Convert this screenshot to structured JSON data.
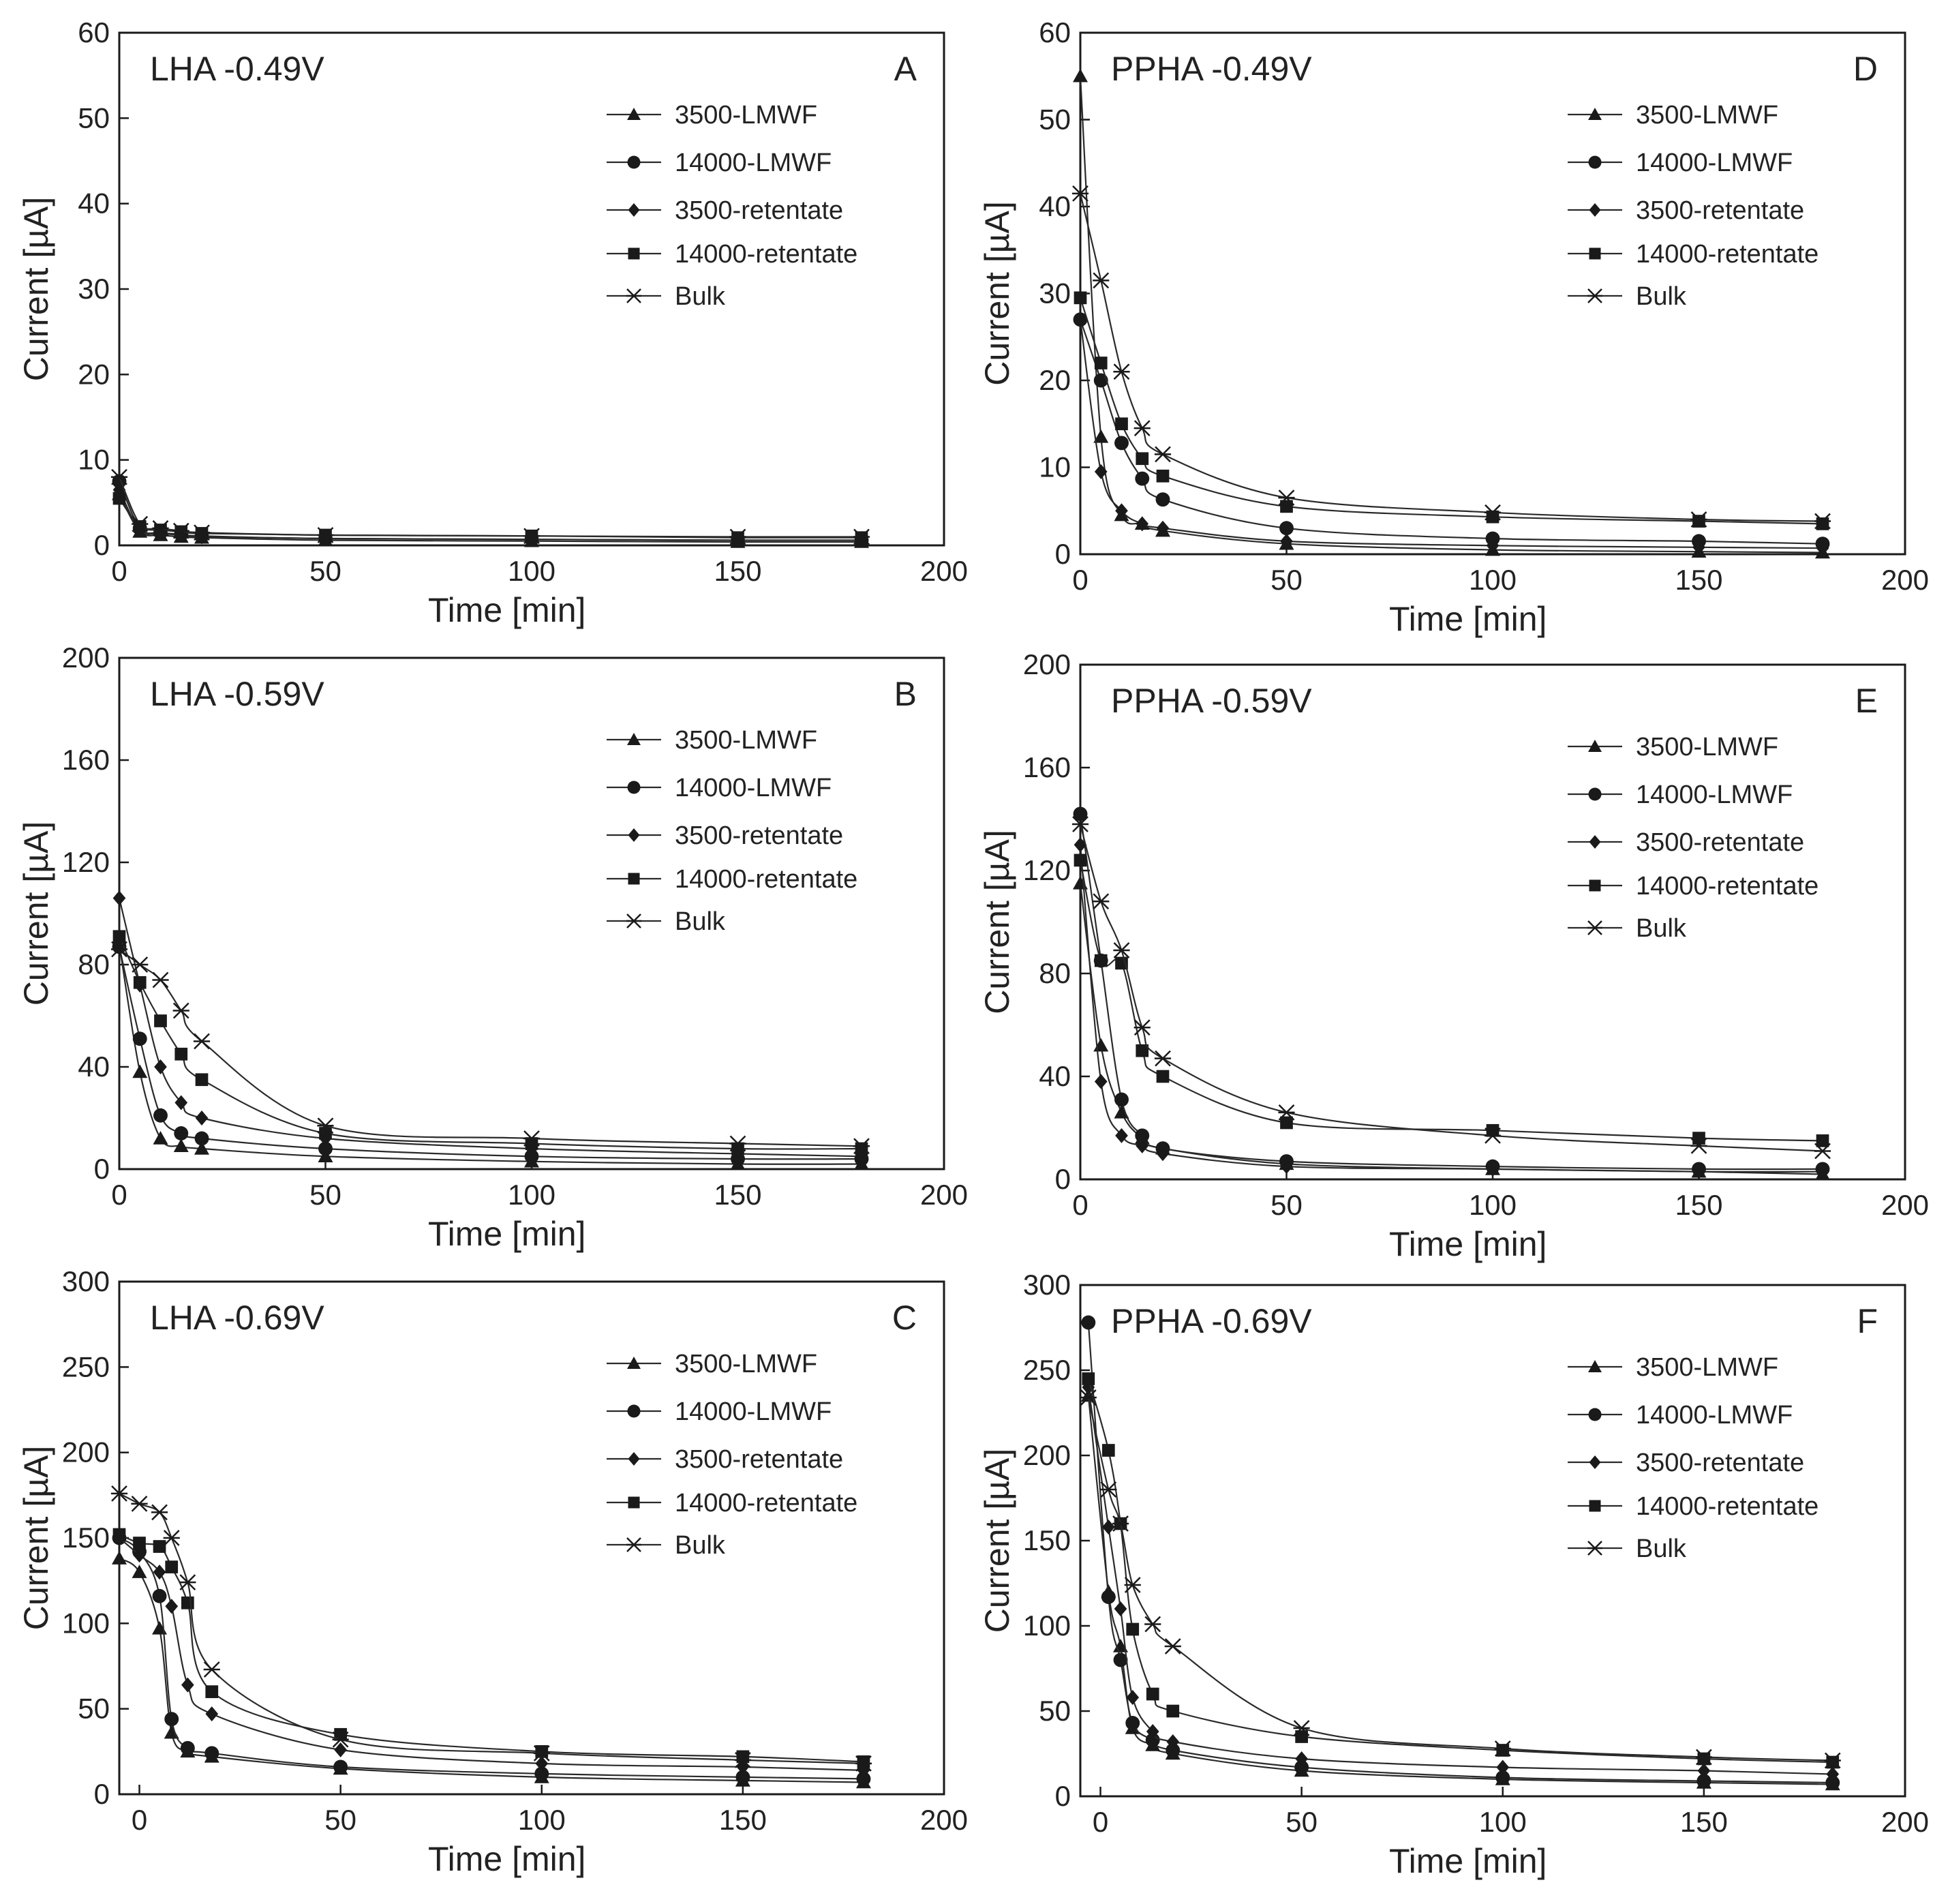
{
  "chart_data": [
    {
      "type": "line",
      "title": "LHA -0.49V",
      "letter": "A",
      "xlabel": "Time [min]",
      "ylabel": "Current [µA]",
      "xlim": [
        0,
        200
      ],
      "ylim": [
        0,
        60
      ],
      "xticks": [
        0,
        50,
        100,
        150,
        200
      ],
      "yticks": [
        0,
        10,
        20,
        30,
        40,
        50,
        60
      ],
      "series": [
        {
          "name": "3500-LMWF",
          "marker": "triangle",
          "x": [
            0,
            5,
            10,
            15,
            20,
            50,
            100,
            150,
            180
          ],
          "y": [
            6.0,
            1.6,
            1.2,
            1.0,
            0.9,
            0.6,
            0.5,
            0.4,
            0.4
          ]
        },
        {
          "name": "14000-LMWF",
          "marker": "circle",
          "x": [
            0,
            5,
            10,
            15,
            20,
            50,
            100,
            150,
            180
          ],
          "y": [
            7.5,
            2.0,
            1.5,
            1.3,
            1.1,
            0.8,
            0.7,
            0.6,
            0.6
          ]
        },
        {
          "name": "3500-retentate",
          "marker": "diamond",
          "x": [
            0,
            5,
            10,
            15,
            20,
            50,
            100,
            150,
            180
          ],
          "y": [
            6.5,
            1.8,
            1.4,
            1.2,
            1.0,
            0.8,
            0.7,
            0.6,
            0.6
          ]
        },
        {
          "name": "14000-retentate",
          "marker": "square",
          "x": [
            0,
            5,
            10,
            15,
            20,
            50,
            100,
            150,
            180
          ],
          "y": [
            5.5,
            2.2,
            1.8,
            1.6,
            1.4,
            1.2,
            1.1,
            0.9,
            0.9
          ]
        },
        {
          "name": "Bulk",
          "marker": "star",
          "x": [
            0,
            5,
            10,
            15,
            20,
            50,
            100,
            150,
            180
          ],
          "y": [
            8.0,
            2.5,
            2.0,
            1.7,
            1.5,
            1.2,
            1.1,
            1.0,
            1.0
          ]
        }
      ]
    },
    {
      "type": "line",
      "title": "LHA -0.59V",
      "letter": "B",
      "xlabel": "Time [min]",
      "ylabel": "Current [µA]",
      "xlim": [
        0,
        200
      ],
      "ylim": [
        0,
        200
      ],
      "xticks": [
        0,
        50,
        100,
        150,
        200
      ],
      "yticks": [
        0,
        40,
        80,
        120,
        160,
        200
      ],
      "series": [
        {
          "name": "3500-LMWF",
          "marker": "triangle",
          "x": [
            0,
            5,
            10,
            15,
            20,
            50,
            100,
            150,
            180
          ],
          "y": [
            88,
            38,
            12,
            9,
            8,
            5,
            3,
            2,
            2
          ]
        },
        {
          "name": "14000-LMWF",
          "marker": "circle",
          "x": [
            0,
            5,
            10,
            15,
            20,
            50,
            100,
            150,
            180
          ],
          "y": [
            87,
            51,
            21,
            14,
            12,
            8,
            5,
            4,
            4
          ]
        },
        {
          "name": "3500-retentate",
          "marker": "diamond",
          "x": [
            0,
            5,
            10,
            15,
            20,
            50,
            100,
            150,
            180
          ],
          "y": [
            106,
            72,
            40,
            26,
            20,
            12,
            8,
            6,
            5
          ]
        },
        {
          "name": "14000-retentate",
          "marker": "square",
          "x": [
            0,
            5,
            10,
            15,
            20,
            50,
            100,
            150,
            180
          ],
          "y": [
            91,
            73,
            58,
            45,
            35,
            14,
            10,
            8,
            8
          ]
        },
        {
          "name": "Bulk",
          "marker": "star",
          "x": [
            0,
            5,
            10,
            15,
            20,
            50,
            100,
            150,
            180
          ],
          "y": [
            86,
            80,
            74,
            62,
            50,
            17,
            12,
            10,
            9
          ]
        }
      ]
    },
    {
      "type": "line",
      "title": "LHA -0.69V",
      "letter": "C",
      "xlabel": "Time [min]",
      "ylabel": "Current [µA]",
      "xlim": [
        -5,
        200
      ],
      "ylim": [
        0,
        300
      ],
      "xticks": [
        0,
        50,
        100,
        150,
        200
      ],
      "yticks": [
        0,
        50,
        100,
        150,
        200,
        250,
        300
      ],
      "series": [
        {
          "name": "3500-LMWF",
          "marker": "triangle",
          "x": [
            -5,
            0,
            5,
            8,
            12,
            18,
            50,
            100,
            150,
            180
          ],
          "y": [
            138,
            130,
            97,
            36,
            25,
            22,
            15,
            10,
            8,
            7
          ]
        },
        {
          "name": "14000-LMWF",
          "marker": "circle",
          "x": [
            -5,
            0,
            5,
            8,
            12,
            18,
            50,
            100,
            150,
            180
          ],
          "y": [
            150,
            142,
            116,
            44,
            27,
            24,
            16,
            12,
            10,
            9
          ]
        },
        {
          "name": "3500-retentate",
          "marker": "diamond",
          "x": [
            -5,
            0,
            5,
            8,
            12,
            18,
            50,
            100,
            150,
            180
          ],
          "y": [
            150,
            140,
            130,
            110,
            64,
            47,
            26,
            18,
            16,
            14
          ]
        },
        {
          "name": "14000-retentate",
          "marker": "square",
          "x": [
            -5,
            0,
            5,
            8,
            12,
            18,
            50,
            100,
            150,
            180
          ],
          "y": [
            152,
            147,
            145,
            133,
            112,
            60,
            35,
            25,
            22,
            19
          ]
        },
        {
          "name": "Bulk",
          "marker": "star",
          "x": [
            -5,
            0,
            5,
            8,
            12,
            18,
            50,
            100,
            150,
            180
          ],
          "y": [
            176,
            170,
            165,
            150,
            124,
            73,
            32,
            24,
            20,
            18
          ]
        }
      ]
    },
    {
      "type": "line",
      "title": "PPHA -0.49V",
      "letter": "D",
      "xlabel": "Time [min]",
      "ylabel": "Current [µA]",
      "xlim": [
        0,
        200
      ],
      "ylim": [
        0,
        60
      ],
      "xticks": [
        0,
        50,
        100,
        150,
        200
      ],
      "yticks": [
        0,
        10,
        20,
        30,
        40,
        50,
        60
      ],
      "series": [
        {
          "name": "3500-LMWF",
          "marker": "triangle",
          "x": [
            0,
            5,
            10,
            15,
            20,
            50,
            100,
            150,
            180
          ],
          "y": [
            55,
            13.5,
            4.5,
            3.5,
            2.7,
            1.2,
            0.5,
            0.3,
            0.2
          ]
        },
        {
          "name": "14000-LMWF",
          "marker": "circle",
          "x": [
            0,
            5,
            10,
            15,
            20,
            50,
            100,
            150,
            180
          ],
          "y": [
            27,
            20,
            12.8,
            8.7,
            6.3,
            3.0,
            1.8,
            1.5,
            1.2
          ]
        },
        {
          "name": "3500-retentate",
          "marker": "diamond",
          "x": [
            0,
            5,
            10,
            15,
            20,
            50,
            100,
            150,
            180
          ],
          "y": [
            27,
            9.5,
            5.0,
            3.5,
            3.0,
            1.5,
            1.0,
            0.8,
            0.7
          ]
        },
        {
          "name": "14000-retentate",
          "marker": "square",
          "x": [
            0,
            5,
            10,
            15,
            20,
            50,
            100,
            150,
            180
          ],
          "y": [
            29.5,
            22,
            15,
            11,
            9,
            5.5,
            4.3,
            3.8,
            3.5
          ]
        },
        {
          "name": "Bulk",
          "marker": "star",
          "x": [
            0,
            5,
            10,
            15,
            20,
            50,
            100,
            150,
            180
          ],
          "y": [
            41.5,
            31.5,
            21,
            14.5,
            11.5,
            6.5,
            4.8,
            4.0,
            3.8
          ]
        }
      ]
    },
    {
      "type": "line",
      "title": "PPHA -0.59V",
      "letter": "E",
      "xlabel": "Time [min]",
      "ylabel": "Current [µA]",
      "xlim": [
        0,
        200
      ],
      "ylim": [
        0,
        200
      ],
      "xticks": [
        0,
        50,
        100,
        150,
        200
      ],
      "yticks": [
        0,
        40,
        80,
        120,
        160,
        200
      ],
      "series": [
        {
          "name": "3500-LMWF",
          "marker": "triangle",
          "x": [
            0,
            5,
            10,
            15,
            20,
            50,
            100,
            150,
            180
          ],
          "y": [
            115,
            52,
            26,
            16,
            12,
            6,
            4,
            3,
            2
          ]
        },
        {
          "name": "14000-LMWF",
          "marker": "circle",
          "x": [
            0,
            5,
            10,
            15,
            20,
            50,
            100,
            150,
            180
          ],
          "y": [
            142,
            85,
            31,
            17,
            12,
            7,
            5,
            4,
            4
          ]
        },
        {
          "name": "3500-retentate",
          "marker": "diamond",
          "x": [
            0,
            5,
            10,
            15,
            20,
            50,
            100,
            150,
            180
          ],
          "y": [
            130,
            38,
            17,
            13,
            10,
            5,
            4,
            3,
            3
          ]
        },
        {
          "name": "14000-retentate",
          "marker": "square",
          "x": [
            0,
            5,
            10,
            15,
            20,
            50,
            100,
            150,
            180
          ],
          "y": [
            124,
            85,
            84,
            50,
            40,
            22,
            19,
            16,
            15
          ]
        },
        {
          "name": "Bulk",
          "marker": "star",
          "x": [
            0,
            5,
            10,
            15,
            20,
            50,
            100,
            150,
            180
          ],
          "y": [
            138,
            108,
            89,
            59,
            47,
            26,
            17,
            13,
            11
          ]
        }
      ]
    },
    {
      "type": "line",
      "title": "PPHA -0.69V",
      "letter": "F",
      "xlabel": "Time [min]",
      "ylabel": "Current [µA]",
      "xlim": [
        -5,
        200
      ],
      "ylim": [
        0,
        300
      ],
      "xticks": [
        0,
        50,
        100,
        150,
        200
      ],
      "yticks": [
        0,
        50,
        100,
        150,
        200,
        250,
        300
      ],
      "series": [
        {
          "name": "3500-LMWF",
          "marker": "triangle",
          "x": [
            -3,
            2,
            5,
            8,
            13,
            18,
            50,
            100,
            150,
            182
          ],
          "y": [
            235,
            120,
            88,
            40,
            30,
            25,
            15,
            10,
            8,
            7
          ]
        },
        {
          "name": "14000-LMWF",
          "marker": "circle",
          "x": [
            -3,
            2,
            5,
            8,
            13,
            18,
            50,
            100,
            150,
            182
          ],
          "y": [
            278,
            117,
            80,
            43,
            33,
            27,
            17,
            11,
            9,
            8
          ]
        },
        {
          "name": "3500-retentate",
          "marker": "diamond",
          "x": [
            -3,
            2,
            5,
            8,
            13,
            18,
            50,
            100,
            150,
            182
          ],
          "y": [
            240,
            158,
            110,
            58,
            38,
            32,
            22,
            17,
            15,
            13
          ]
        },
        {
          "name": "14000-retentate",
          "marker": "square",
          "x": [
            -3,
            2,
            5,
            8,
            13,
            18,
            50,
            100,
            150,
            182
          ],
          "y": [
            245,
            203,
            160,
            98,
            60,
            50,
            35,
            27,
            22,
            20
          ]
        },
        {
          "name": "Bulk",
          "marker": "star",
          "x": [
            -3,
            2,
            5,
            8,
            13,
            18,
            50,
            100,
            150,
            182
          ],
          "y": [
            234,
            180,
            160,
            124,
            101,
            88,
            40,
            28,
            23,
            21
          ]
        }
      ]
    }
  ]
}
